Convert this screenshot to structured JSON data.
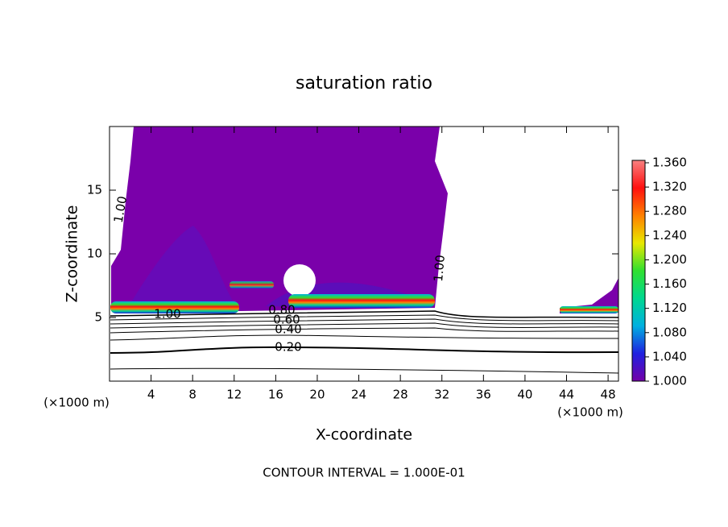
{
  "chart_data": {
    "type": "contour",
    "title": "saturation ratio",
    "x_label": "X-coordinate",
    "y_label": "Z-coordinate",
    "x_unit_left": "(×1000 m)",
    "x_unit_right": "(×1000 m)",
    "footer": "CONTOUR INTERVAL = 1.000E-01",
    "xlim": [
      0,
      49
    ],
    "ylim": [
      0,
      20
    ],
    "xticks": [
      4,
      8,
      12,
      16,
      20,
      24,
      28,
      32,
      36,
      40,
      44,
      48
    ],
    "yticks": [
      5,
      10,
      15
    ],
    "clim": [
      1.0,
      1.364
    ],
    "colormap": [
      "#7400a8",
      "#2020e0",
      "#00b0e0",
      "#00d890",
      "#30e030",
      "#e8e800",
      "#ff8000",
      "#ff1010",
      "#f88080"
    ],
    "cticks": [
      {
        "value": 1.0,
        "label": "1.000"
      },
      {
        "value": 1.04,
        "label": "1.040"
      },
      {
        "value": 1.08,
        "label": "1.080"
      },
      {
        "value": 1.12,
        "label": "1.120"
      },
      {
        "value": 1.16,
        "label": "1.160"
      },
      {
        "value": 1.2,
        "label": "1.200"
      },
      {
        "value": 1.24,
        "label": "1.240"
      },
      {
        "value": 1.28,
        "label": "1.280"
      },
      {
        "value": 1.32,
        "label": "1.320"
      },
      {
        "value": 1.36,
        "label": "1.360"
      }
    ],
    "contour_labels": [
      {
        "value": 1.0,
        "label": "1.00"
      },
      {
        "value": 1.0,
        "label": "1.00"
      },
      {
        "value": 1.0,
        "label": "1.00"
      },
      {
        "value": 0.8,
        "label": "0.80"
      },
      {
        "value": 0.6,
        "label": "0.60"
      },
      {
        "value": 0.4,
        "label": "0.40"
      },
      {
        "value": 0.2,
        "label": "0.20"
      }
    ]
  }
}
